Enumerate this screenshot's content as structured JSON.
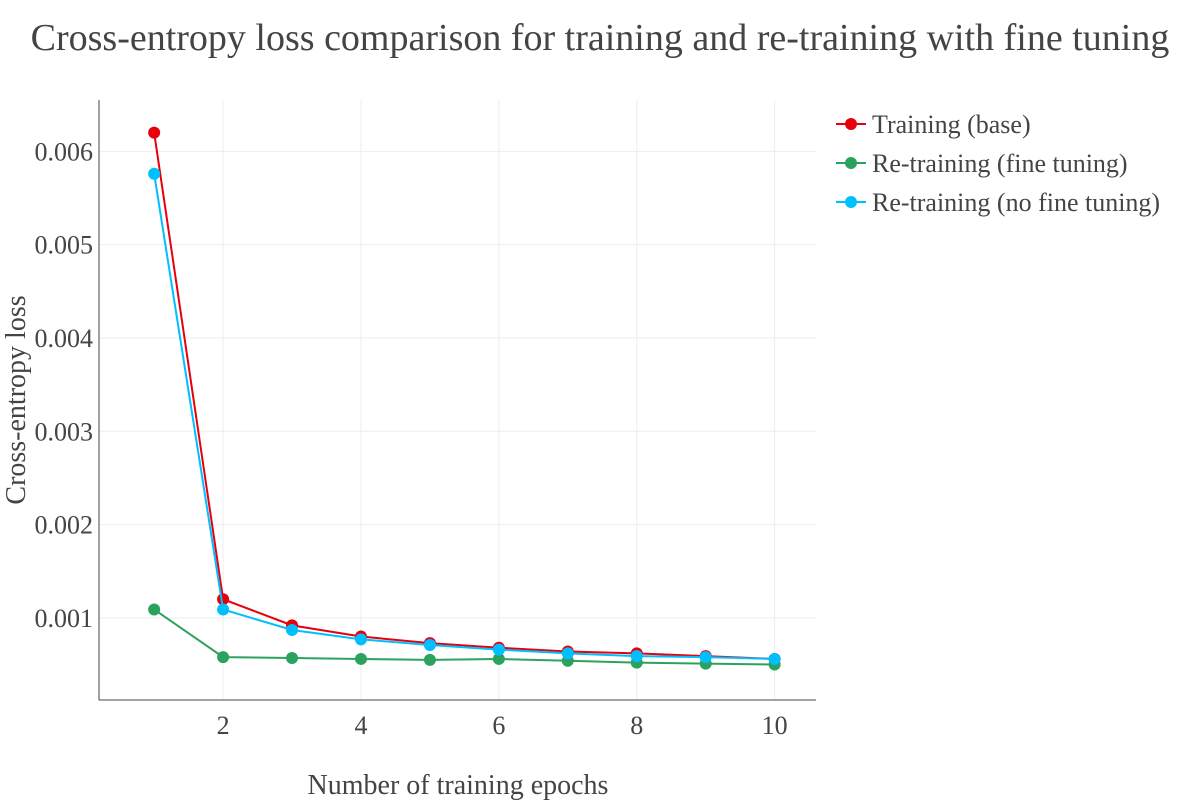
{
  "chart_data": {
    "type": "line",
    "title": "Cross-entropy loss comparison for training and re-training with fine tuning",
    "xlabel": "Number of training epochs",
    "ylabel": "Cross-entropy loss",
    "x": [
      1,
      2,
      3,
      4,
      5,
      6,
      7,
      8,
      9,
      10
    ],
    "xlim": [
      0.2,
      10.6
    ],
    "ylim": [
      0.00012,
      0.00655
    ],
    "xticks": [
      2,
      4,
      6,
      8,
      10
    ],
    "xtick_labels": [
      "2",
      "4",
      "6",
      "8",
      "10"
    ],
    "yticks": [
      0.001,
      0.002,
      0.003,
      0.004,
      0.005,
      0.006
    ],
    "ytick_labels": [
      "0.001",
      "0.002",
      "0.003",
      "0.004",
      "0.005",
      "0.006"
    ],
    "grid": true,
    "legend_position": "top-right outside",
    "series": [
      {
        "name": "Training (base)",
        "color": "#e6000b",
        "values": [
          0.0062,
          0.0012,
          0.00092,
          0.0008,
          0.00073,
          0.00068,
          0.00064,
          0.00062,
          0.00059,
          0.00056
        ]
      },
      {
        "name": "Re-training (fine tuning)",
        "color": "#2ca25f",
        "values": [
          0.00109,
          0.00058,
          0.00057,
          0.00056,
          0.00055,
          0.00056,
          0.00054,
          0.00052,
          0.00051,
          0.0005
        ]
      },
      {
        "name": "Re-training (no fine tuning)",
        "color": "#00bfff",
        "values": [
          0.00576,
          0.00109,
          0.00087,
          0.00077,
          0.00071,
          0.00066,
          0.00062,
          0.00059,
          0.00058,
          0.00056
        ]
      }
    ]
  }
}
